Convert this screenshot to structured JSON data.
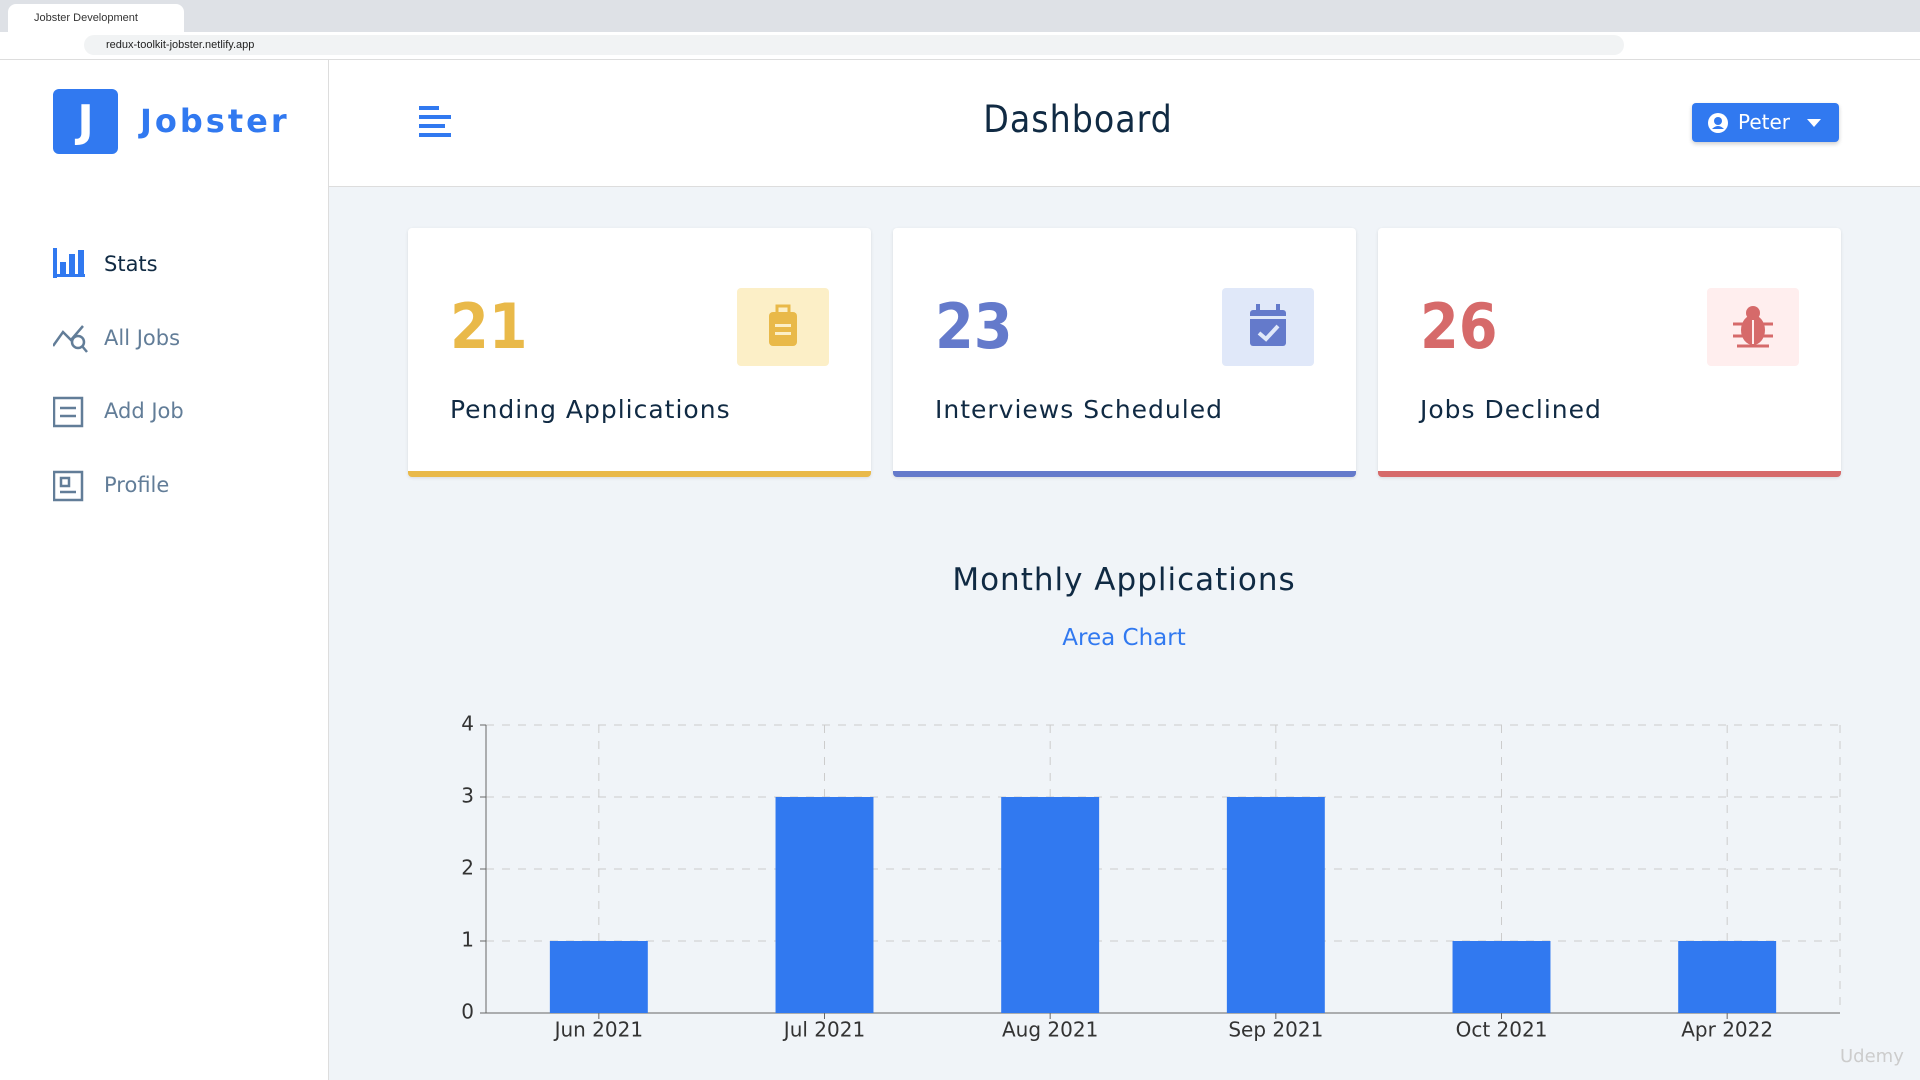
{
  "browser": {
    "tab_title": "Jobster Development",
    "url": "redux-toolkit-jobster.netlify.app"
  },
  "sidebar": {
    "logo_letter": "J",
    "brand": "Jobster",
    "nav": [
      "Stats",
      "All Jobs",
      "Add Job",
      "Profile"
    ]
  },
  "header": {
    "title": "Dashboard",
    "user": "Peter"
  },
  "stats": [
    {
      "count": 21,
      "label": "Pending Applications",
      "color": "#e9b949",
      "bg": "#fcefc7"
    },
    {
      "count": 23,
      "label": "Interviews Scheduled",
      "color": "#647acb",
      "bg": "#e0e8f9"
    },
    {
      "count": 26,
      "label": "Jobs Declined",
      "color": "#d66a6a",
      "bg": "#ffeeee"
    }
  ],
  "chart_section": {
    "title": "Monthly Applications",
    "toggle": "Area Chart"
  },
  "chart_data": {
    "type": "bar",
    "categories": [
      "Jun 2021",
      "Jul 2021",
      "Aug 2021",
      "Sep 2021",
      "Oct 2021",
      "Apr 2022"
    ],
    "values": [
      1,
      3,
      3,
      3,
      1,
      1
    ],
    "color": "#3179f0",
    "ylim": [
      0,
      4
    ],
    "yticks": [
      0,
      1,
      2,
      3,
      4
    ],
    "grid": true
  },
  "watermark": "Udemy"
}
